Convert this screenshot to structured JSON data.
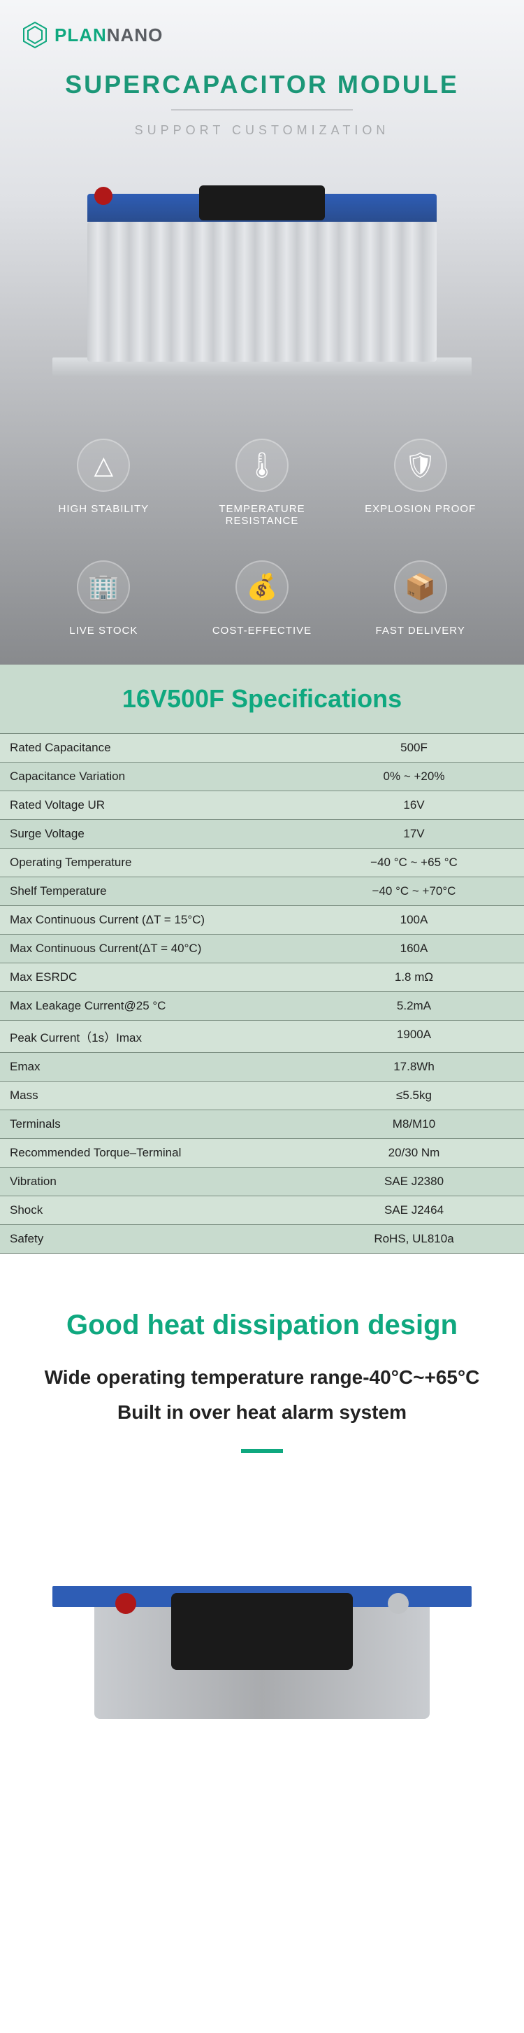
{
  "brand": {
    "green": "PLAN",
    "grey": "NANO"
  },
  "hero": {
    "title": "SUPERCAPACITOR MODULE",
    "subtitle": "SUPPORT CUSTOMIZATION"
  },
  "features": [
    {
      "icon": "△",
      "label": "HIGH STABILITY"
    },
    {
      "icon": "🌡",
      "label": "TEMPERATURE RESISTANCE"
    },
    {
      "icon": "🛡",
      "label": "EXPLOSION PROOF"
    },
    {
      "icon": "🏢",
      "label": "LIVE STOCK"
    },
    {
      "icon": "💰",
      "label": "COST-EFFECTIVE"
    },
    {
      "icon": "📦",
      "label": "FAST DELIVERY"
    }
  ],
  "specs": {
    "title": "16V500F Specifications",
    "rows": [
      {
        "label": "Rated Capacitance",
        "value": "500F"
      },
      {
        "label": "Capacitance Variation",
        "value": "0% ~ +20%"
      },
      {
        "label": "Rated Voltage UR",
        "value": "16V"
      },
      {
        "label": "Surge Voltage",
        "value": "17V"
      },
      {
        "label": "Operating Temperature",
        "value": "−40 °C ~ +65 °C"
      },
      {
        "label": "Shelf Temperature",
        "value": "−40 °C ~ +70°C"
      },
      {
        "label": "Max Continuous Current (ΔT = 15°C)",
        "value": "100A"
      },
      {
        "label": "Max Continuous Current(ΔT = 40°C)",
        "value": "160A"
      },
      {
        "label": "Max ESRDC",
        "value": "1.8 mΩ"
      },
      {
        "label": "Max Leakage Current@25 °C",
        "value": "5.2mA"
      },
      {
        "label": "Peak Current（1s）Imax",
        "value": "1900A"
      },
      {
        "label": "Emax",
        "value": "17.8Wh"
      },
      {
        "label": "Mass",
        "value": "≤5.5kg"
      },
      {
        "label": "Terminals",
        "value": "M8/M10"
      },
      {
        "label": "Recommended Torque–Terminal",
        "value": "20/30 Nm"
      },
      {
        "label": "Vibration",
        "value": "SAE J2380"
      },
      {
        "label": "Shock",
        "value": "SAE J2464"
      },
      {
        "label": "Safety",
        "value": "RoHS, UL810a"
      }
    ]
  },
  "dissipation": {
    "title": "Good heat dissipation design",
    "line1": "Wide operating temperature range-40°C~+65°C",
    "line2": "Built in over heat alarm system"
  },
  "colors": {
    "brand_green": "#0fa87f",
    "spec_row_odd": "#d3e3d7",
    "spec_row_even": "#c8dbce",
    "capacitor_blue": "#2e5db5"
  }
}
